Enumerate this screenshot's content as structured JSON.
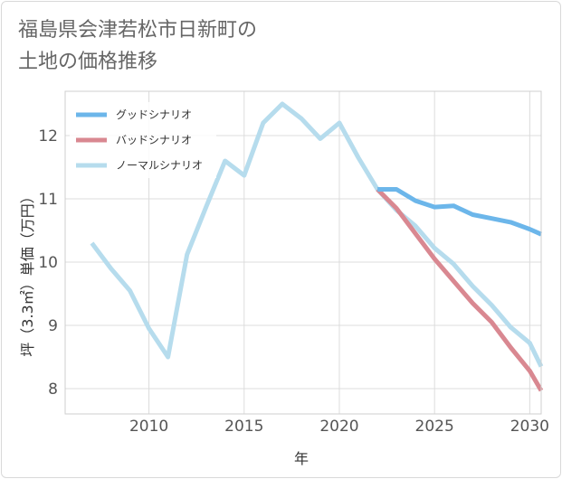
{
  "page": {
    "title_line1": "福島県会津若松市日新町の",
    "title_line2": "土地の価格推移"
  },
  "colors": {
    "good": "#6cb6ea",
    "bad": "#d98891",
    "normal": "#b6dced",
    "grid": "#dcdcdc",
    "frame": "#cfcfcf"
  },
  "chart_data": {
    "type": "line",
    "title": "福島県会津若松市日新町の土地の価格推移",
    "xlabel": "年",
    "ylabel": "坪（3.3㎡）単価（万円）",
    "xlim": [
      2005.6,
      2030.6
    ],
    "ylim": [
      7.6,
      12.7
    ],
    "xticks": [
      2010,
      2015,
      2020,
      2025,
      2030
    ],
    "yticks": [
      8,
      9,
      10,
      11,
      12
    ],
    "grid": true,
    "legend_position": "top-left",
    "series": [
      {
        "name": "グッドシナリオ",
        "key": "good",
        "x": [
          2022,
          2023,
          2024,
          2025,
          2026,
          2027,
          2028,
          2029,
          2030,
          2030.6
        ],
        "values": [
          11.15,
          11.15,
          10.97,
          10.87,
          10.89,
          10.75,
          10.69,
          10.63,
          10.52,
          10.44
        ]
      },
      {
        "name": "バッドシナリオ",
        "key": "bad",
        "x": [
          2022,
          2023,
          2024,
          2025,
          2026,
          2027,
          2028,
          2029,
          2030,
          2030.6
        ],
        "values": [
          11.15,
          10.85,
          10.45,
          10.05,
          9.7,
          9.35,
          9.05,
          8.65,
          8.28,
          7.97
        ]
      },
      {
        "name": "ノーマルシナリオ",
        "key": "normal",
        "x": [
          2007,
          2008,
          2009,
          2010,
          2011,
          2012,
          2013,
          2014,
          2015,
          2016,
          2017,
          2018,
          2019,
          2020,
          2021,
          2022,
          2023,
          2024,
          2025,
          2026,
          2027,
          2028,
          2029,
          2030,
          2030.6
        ],
        "values": [
          10.3,
          9.9,
          9.55,
          8.95,
          8.5,
          10.12,
          10.87,
          11.6,
          11.37,
          12.2,
          12.5,
          12.27,
          11.95,
          12.2,
          11.65,
          11.15,
          10.82,
          10.57,
          10.22,
          9.97,
          9.62,
          9.32,
          8.97,
          8.72,
          8.35
        ]
      }
    ]
  }
}
